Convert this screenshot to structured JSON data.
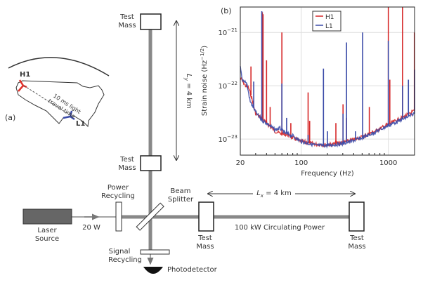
{
  "panel_a": {
    "label": "(a)",
    "site_h1": "H1",
    "site_l1": "L1",
    "travel_line1": "10 ms light",
    "travel_line2": "travel time"
  },
  "diagram": {
    "test_mass_word1": "Test",
    "test_mass_word2": "Mass",
    "ly_label": "L",
    "ly_sub": "y",
    "ly_value": " = 4 km",
    "lx_label": "L",
    "lx_sub": "x",
    "lx_value": " = 4 km",
    "power_recycling_1": "Power",
    "power_recycling_2": "Recycling",
    "beam_splitter_1": "Beam",
    "beam_splitter_2": "Splitter",
    "laser_1": "Laser",
    "laser_2": "Source",
    "input_power": "20 W",
    "circulating_power": "100 kW Circulating Power",
    "signal_recycling_1": "Signal",
    "signal_recycling_2": "Recycling",
    "photodetector": "Photodetector"
  },
  "chart_data": {
    "type": "line",
    "panel_label": "(b)",
    "xlabel": "Frequency (Hz)",
    "ylabel": "Strain noise (Hz",
    "ylabel_exp": "−1/2",
    "xscale": "log",
    "yscale": "log",
    "xlim": [
      20,
      2000
    ],
    "ylim": [
      5e-24,
      3e-21
    ],
    "xticks": [
      {
        "value": 20,
        "label": "20"
      },
      {
        "value": 100,
        "label": "100"
      },
      {
        "value": 1000,
        "label": "1000"
      }
    ],
    "yticks": [
      {
        "value": 1e-21,
        "base": "10",
        "exp": "−21"
      },
      {
        "value": 1e-22,
        "base": "10",
        "exp": "−22"
      },
      {
        "value": 1e-23,
        "base": "10",
        "exp": "−23"
      }
    ],
    "grid": true,
    "legend_position": "top-center",
    "series": [
      {
        "name": "H1",
        "color": "#d62728",
        "baseline": [
          [
            20,
            1.4e-22
          ],
          [
            23,
            1e-22
          ],
          [
            25,
            9e-23
          ],
          [
            27,
            6e-23
          ],
          [
            30,
            3e-23
          ],
          [
            35,
            2.5e-23
          ],
          [
            40,
            2e-23
          ],
          [
            50,
            1.4e-23
          ],
          [
            60,
            1.25e-23
          ],
          [
            70,
            1.2e-23
          ],
          [
            80,
            1.05e-23
          ],
          [
            100,
            9e-24
          ],
          [
            150,
            8e-24
          ],
          [
            200,
            7.8e-24
          ],
          [
            300,
            8.6e-24
          ],
          [
            400,
            9.8e-24
          ],
          [
            500,
            1.1e-23
          ],
          [
            700,
            1.4e-23
          ],
          [
            1000,
            1.9e-23
          ],
          [
            1500,
            2.6e-23
          ],
          [
            2000,
            3.4e-23
          ]
        ],
        "spikes": [
          [
            26.5,
            2.3e-22
          ],
          [
            35.8,
            2.4e-21
          ],
          [
            36.5,
            2.2e-21
          ],
          [
            40,
            3e-22
          ],
          [
            44,
            4e-23
          ],
          [
            60,
            1e-21
          ],
          [
            76,
            2e-23
          ],
          [
            120,
            7.5e-23
          ],
          [
            125,
            2.2e-23
          ],
          [
            250,
            2e-23
          ],
          [
            302,
            4.5e-23
          ],
          [
            331,
            2.5e-23
          ],
          [
            605,
            4e-23
          ],
          [
            1000,
            3e-21
          ],
          [
            1040,
            1.3e-22
          ],
          [
            1455,
            3e-21
          ],
          [
            1990,
            1e-21
          ]
        ]
      },
      {
        "name": "L1",
        "color": "#3b4ba8",
        "baseline": [
          [
            20,
            2.2e-22
          ],
          [
            21,
            1.3e-22
          ],
          [
            23,
            1.2e-22
          ],
          [
            24,
            1e-22
          ],
          [
            26,
            5e-23
          ],
          [
            28,
            4e-23
          ],
          [
            30,
            3.2e-23
          ],
          [
            35,
            2.3e-23
          ],
          [
            40,
            2e-23
          ],
          [
            50,
            1.5e-23
          ],
          [
            57,
            1.6e-23
          ],
          [
            65,
            1.3e-23
          ],
          [
            80,
            1.15e-23
          ],
          [
            100,
            9e-24
          ],
          [
            150,
            7.6e-24
          ],
          [
            200,
            7.6e-24
          ],
          [
            300,
            8.2e-24
          ],
          [
            400,
            9.4e-24
          ],
          [
            500,
            1.05e-23
          ],
          [
            700,
            1.35e-23
          ],
          [
            1000,
            1.8e-23
          ],
          [
            1500,
            2.4e-23
          ],
          [
            2000,
            3e-23
          ]
        ],
        "spikes": [
          [
            28.5,
            1.2e-22
          ],
          [
            35.3,
            2.5e-21
          ],
          [
            60,
            1.1e-22
          ],
          [
            68,
            2.5e-23
          ],
          [
            120,
            1.2e-23
          ],
          [
            180,
            2.1e-22
          ],
          [
            200,
            1.4e-23
          ],
          [
            302,
            3e-23
          ],
          [
            331,
            6.5e-22
          ],
          [
            420,
            1.4e-23
          ],
          [
            507,
            1e-21
          ],
          [
            1000,
            7e-22
          ],
          [
            1455,
            1e-22
          ],
          [
            1700,
            1.3e-22
          ],
          [
            2000,
            2e-22
          ]
        ]
      }
    ]
  }
}
